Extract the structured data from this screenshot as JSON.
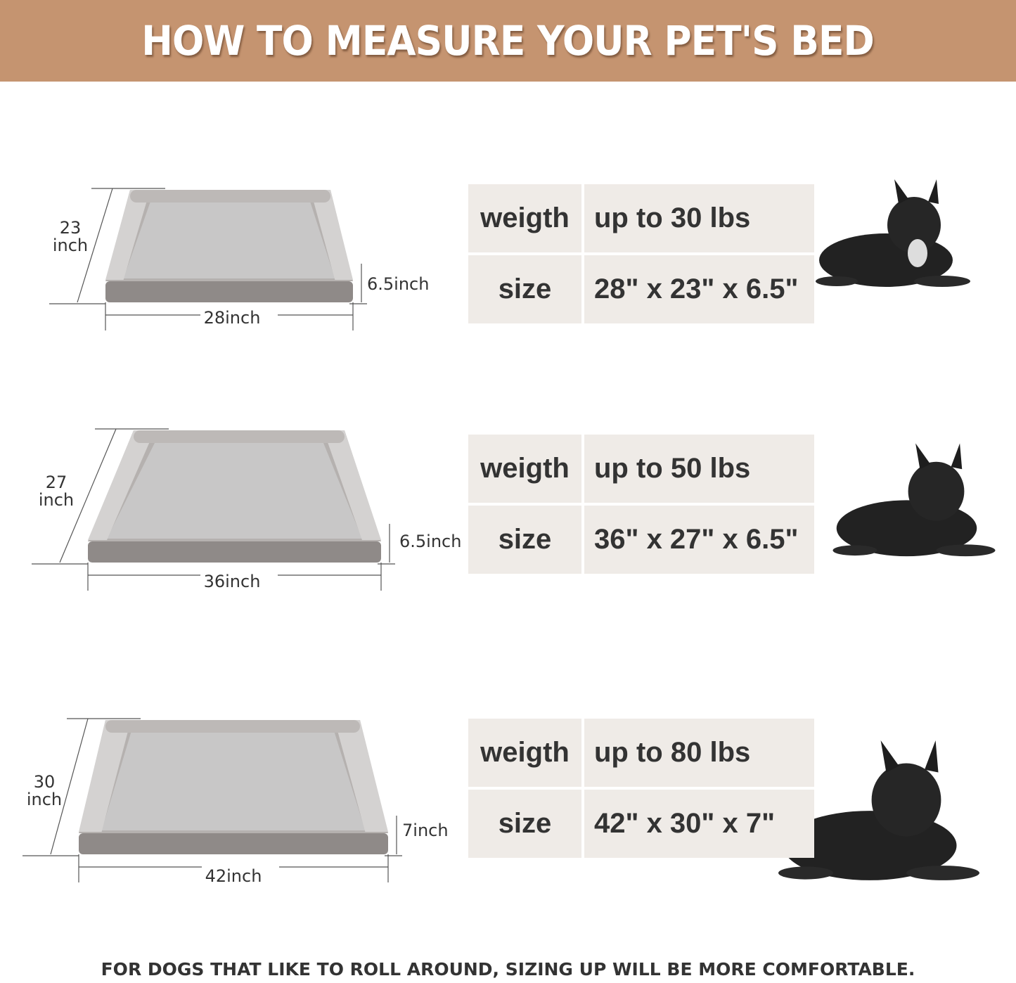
{
  "banner": {
    "title": "HOW TO MEASURE YOUR PET'S BED",
    "color": "#c59470"
  },
  "sizes": [
    {
      "length": "28inch",
      "depth_num": "23",
      "depth_unit": "inch",
      "height": "6.5inch",
      "weight_label": "weigth",
      "weight_value": "up to 30 lbs",
      "size_label": "size",
      "size_value": "28\" x 23\" x 6.5\"",
      "dog": "french-bulldog"
    },
    {
      "length": "36inch",
      "depth_num": "27",
      "depth_unit": "inch",
      "height": "6.5inch",
      "weight_label": "weigth",
      "weight_value": "up to 50 lbs",
      "size_label": "size",
      "size_value": "36\" x 27\" x 6.5\"",
      "dog": "spaniel"
    },
    {
      "length": "42inch",
      "depth_num": "30",
      "depth_unit": "inch",
      "height": "7inch",
      "weight_label": "weigth",
      "weight_value": "up to 80 lbs",
      "size_label": "size",
      "size_value": "42\" x 30\" x 7\"",
      "dog": "labrador"
    }
  ],
  "footer": "FOR DOGS THAT LIKE TO ROLL AROUND, SIZING UP WILL BE MORE COMFORTABLE.",
  "colors": {
    "cell": "#efebe7",
    "text": "#333333"
  }
}
